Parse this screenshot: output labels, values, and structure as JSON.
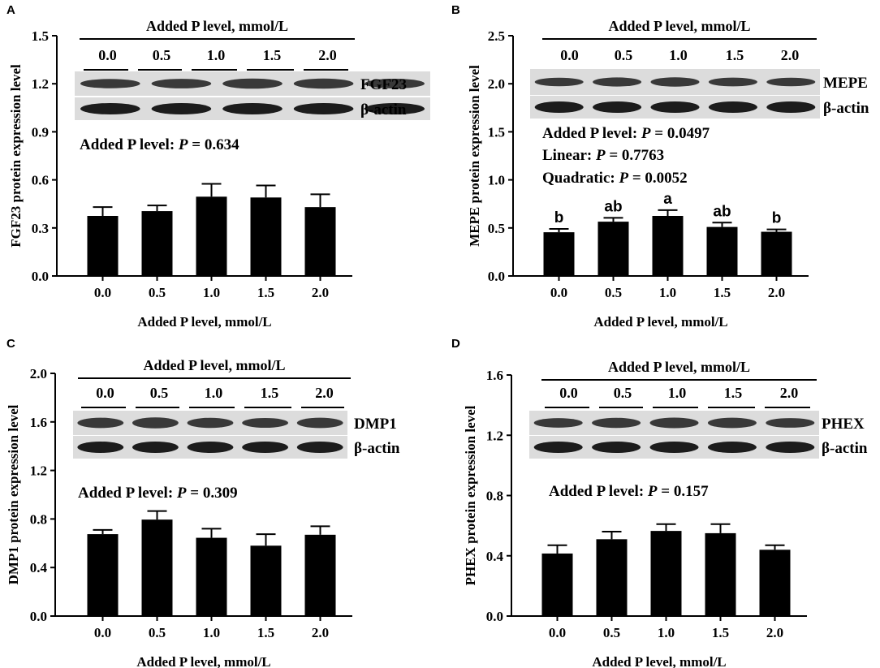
{
  "chart_data": [
    {
      "panel_letter": "A",
      "type": "bar",
      "categories": [
        "0.0",
        "0.5",
        "1.0",
        "1.5",
        "2.0"
      ],
      "values": [
        0.375,
        0.405,
        0.495,
        0.49,
        0.43
      ],
      "errors": [
        0.055,
        0.035,
        0.08,
        0.075,
        0.08
      ],
      "xlabel": "Added P level, mmol/L",
      "ylabel": "FGF23 protein expression level",
      "ylim": [
        0,
        1.5
      ],
      "yticks": [
        "0.0",
        "0.3",
        "0.6",
        "0.9",
        "1.2",
        "1.5"
      ],
      "letters": [],
      "stats": [
        {
          "label": "Added P level:",
          "p_symbol": "P",
          "value": " = 0.634"
        }
      ],
      "blot": {
        "header": "Added P level, mmol/L",
        "lanes": [
          "0.0",
          "0.5",
          "1.0",
          "1.5",
          "2.0"
        ],
        "bands": [
          "FGF23",
          "β-actin"
        ]
      }
    },
    {
      "panel_letter": "B",
      "type": "bar",
      "categories": [
        "0.0",
        "0.5",
        "1.0",
        "1.5",
        "2.0"
      ],
      "values": [
        0.455,
        0.565,
        0.625,
        0.51,
        0.46
      ],
      "errors": [
        0.035,
        0.04,
        0.06,
        0.045,
        0.025
      ],
      "xlabel": "Added P level, mmol/L",
      "ylabel": "MEPE protein expression level",
      "ylim": [
        0,
        2.5
      ],
      "yticks": [
        "0.0",
        "0.5",
        "1.0",
        "1.5",
        "2.0",
        "2.5"
      ],
      "letters": [
        "b",
        "ab",
        "a",
        "ab",
        "b"
      ],
      "stats": [
        {
          "label": "Added P level:",
          "p_symbol": "P",
          "value": " = 0.0497"
        },
        {
          "label": "Linear:",
          "p_symbol": "P",
          "value": " = 0.7763"
        },
        {
          "label": "Quadratic:",
          "p_symbol": "P",
          "value": " = 0.0052"
        }
      ],
      "blot": {
        "header": "Added P level, mmol/L",
        "lanes": [
          "0.0",
          "0.5",
          "1.0",
          "1.5",
          "2.0"
        ],
        "bands": [
          "MEPE",
          "β-actin"
        ]
      }
    },
    {
      "panel_letter": "C",
      "type": "bar",
      "categories": [
        "0.0",
        "0.5",
        "1.0",
        "1.5",
        "2.0"
      ],
      "values": [
        0.675,
        0.795,
        0.645,
        0.58,
        0.67
      ],
      "errors": [
        0.035,
        0.07,
        0.075,
        0.095,
        0.07
      ],
      "xlabel": "Added P level, mmol/L",
      "ylabel": "DMP1 protein expression level",
      "ylim": [
        0,
        2.0
      ],
      "yticks": [
        "0.0",
        "0.4",
        "0.8",
        "1.2",
        "1.6",
        "2.0"
      ],
      "letters": [],
      "stats": [
        {
          "label": "Added P level:",
          "p_symbol": "P",
          "value": " = 0.309"
        }
      ],
      "blot": {
        "header": "Added P level, mmol/L",
        "lanes": [
          "0.0",
          "0.5",
          "1.0",
          "1.5",
          "2.0"
        ],
        "bands": [
          "DMP1",
          "β-actin"
        ]
      }
    },
    {
      "panel_letter": "D",
      "type": "bar",
      "categories": [
        "0.0",
        "0.5",
        "1.0",
        "1.5",
        "2.0"
      ],
      "values": [
        0.415,
        0.51,
        0.565,
        0.55,
        0.44
      ],
      "errors": [
        0.055,
        0.05,
        0.045,
        0.06,
        0.03
      ],
      "xlabel": "Added P level, mmol/L",
      "ylabel": "PHEX protein expression level",
      "ylim": [
        0,
        1.6
      ],
      "yticks": [
        "0.0",
        "0.4",
        "0.8",
        "1.2",
        "1.6"
      ],
      "letters": [],
      "stats": [
        {
          "label": "Added P level:",
          "p_symbol": "P",
          "value": " = 0.157"
        }
      ],
      "blot": {
        "header": "Added P level, mmol/L",
        "lanes": [
          "0.0",
          "0.5",
          "1.0",
          "1.5",
          "2.0"
        ],
        "bands": [
          "PHEX",
          "β-actin"
        ]
      }
    }
  ],
  "colors": {
    "bar": "#000000",
    "axis": "#000000",
    "blot_background": "#dcdcdc",
    "band": "#1c1c1c"
  }
}
